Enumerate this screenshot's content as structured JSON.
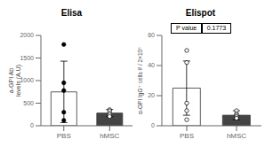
{
  "chart_data": [
    {
      "type": "bar",
      "title": "Elisa",
      "ylabel": "a-GPI Ab\nlevels (A.U)",
      "categories": [
        "PBS",
        "hMSC"
      ],
      "values": [
        750,
        280
      ],
      "errors": [
        680,
        80
      ],
      "colors": [
        "white",
        "#444444"
      ],
      "points": [
        [
          1800,
          950,
          780,
          300,
          120
        ],
        [
          355,
          330,
          280,
          245,
          205
        ]
      ],
      "point_colors": [
        "black",
        "white"
      ],
      "ylim": [
        0,
        2000
      ],
      "yticks": [
        0,
        500,
        1000,
        1500,
        2000
      ],
      "grid": false
    },
    {
      "type": "bar",
      "title": "Elispot",
      "ylabel": "α-GPI IgG⁺ cells # / 2×10⁵",
      "categories": [
        "PBS",
        "hMSC"
      ],
      "values": [
        25,
        7
      ],
      "errors": [
        18,
        3
      ],
      "colors": [
        "white",
        "#444444"
      ],
      "points": [
        [
          50,
          42,
          15,
          10,
          4
        ],
        [
          10,
          8,
          7,
          6,
          5
        ]
      ],
      "point_colors": [
        "white",
        "white"
      ],
      "ylim": [
        0,
        60
      ],
      "yticks": [
        0,
        20,
        40,
        60
      ],
      "annotations": [
        "P value",
        "0.1773"
      ],
      "grid": false
    }
  ]
}
